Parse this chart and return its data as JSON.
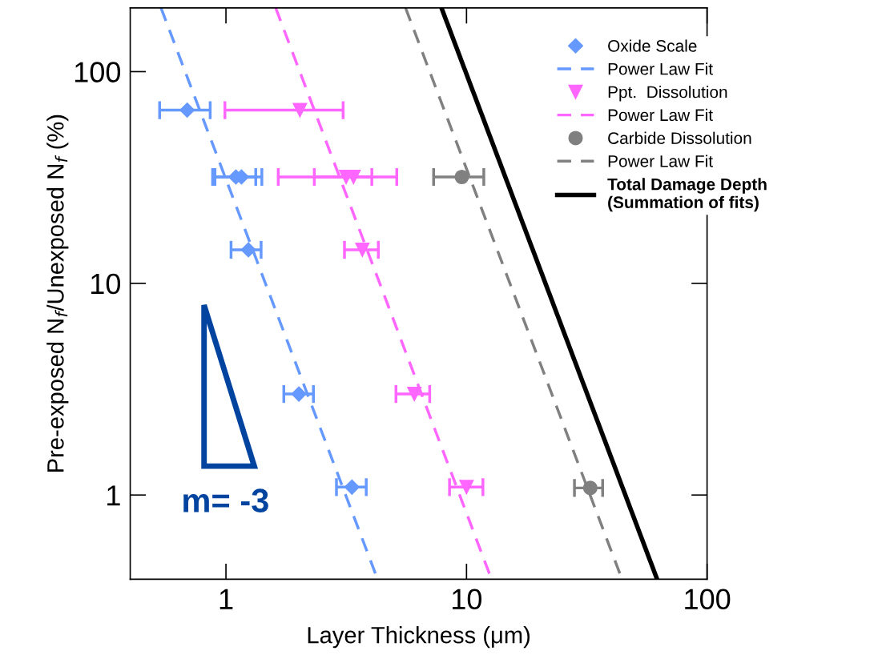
{
  "chart_data": {
    "type": "scatter",
    "xlabel": "Layer Thickness (μm)",
    "ylabel": "Pre-exposed N$_{f}$/Unexposed N$_{f}$ (%)",
    "log": "xy",
    "xlim": [
      0.4,
      100
    ],
    "ylim": [
      0.4,
      200
    ],
    "xticks": [
      1,
      10,
      100
    ],
    "yticks": [
      1,
      10,
      100
    ],
    "grid": false,
    "legend": "top right",
    "series": [
      {
        "name": "Oxide Scale",
        "marker": "diamond",
        "color": "#6699ff",
        "x": [
          0.69,
          1.1,
          1.16,
          1.24,
          2.01,
          3.34
        ],
        "values": [
          65.8,
          31.8,
          31.8,
          14.4,
          3.0,
          1.09
        ],
        "xerrors": [
          [
            0.53,
            0.86
          ],
          [
            0.88,
            1.33
          ],
          [
            0.9,
            1.41
          ],
          [
            1.05,
            1.4
          ],
          [
            1.74,
            2.31
          ],
          [
            2.88,
            3.83
          ]
        ]
      },
      {
        "name": "Power Law Fit",
        "type": "line",
        "line_style": "dashed",
        "color": "#6699ff",
        "x": [
          0.537,
          4.27
        ],
        "values": [
          200,
          0.4
        ]
      },
      {
        "name": "Ppt.  Dissolution",
        "marker": "triangle",
        "color": "#ff66ff",
        "x": [
          2.03,
          3.16,
          3.39,
          3.69,
          6.07,
          10.0
        ],
        "values": [
          65.8,
          31.8,
          31.8,
          14.4,
          3.0,
          1.09
        ],
        "xerrors": [
          [
            0.99,
            3.07
          ],
          [
            1.65,
            4.04
          ],
          [
            2.33,
            5.13
          ],
          [
            3.11,
            4.3
          ],
          [
            5.09,
            7.03
          ],
          [
            8.5,
            11.7
          ]
        ]
      },
      {
        "name": "Power Law Fit",
        "type": "line",
        "line_style": "dashed",
        "color": "#ff66ff",
        "x": [
          1.61,
          12.7
        ],
        "values": [
          200,
          0.4
        ]
      },
      {
        "name": "Carbide Dissolution",
        "marker": "circle",
        "color": "#808080",
        "x": [
          9.56,
          32.7
        ],
        "values": [
          31.8,
          1.08
        ],
        "xerrors": [
          [
            7.3,
            11.8
          ],
          [
            28.1,
            36.8
          ]
        ]
      },
      {
        "name": "Power Law Fit",
        "type": "line",
        "line_style": "dashed",
        "color": "#808080",
        "x": [
          5.58,
          44.3
        ],
        "values": [
          200,
          0.4
        ]
      },
      {
        "name": "Total Damage Depth\n(Summation of fits)",
        "type": "line",
        "line_style": "solid",
        "color": "#000000",
        "x": [
          7.87,
          62.0
        ],
        "values": [
          200,
          0.4
        ]
      }
    ],
    "annotations": [
      "m= -3"
    ]
  }
}
